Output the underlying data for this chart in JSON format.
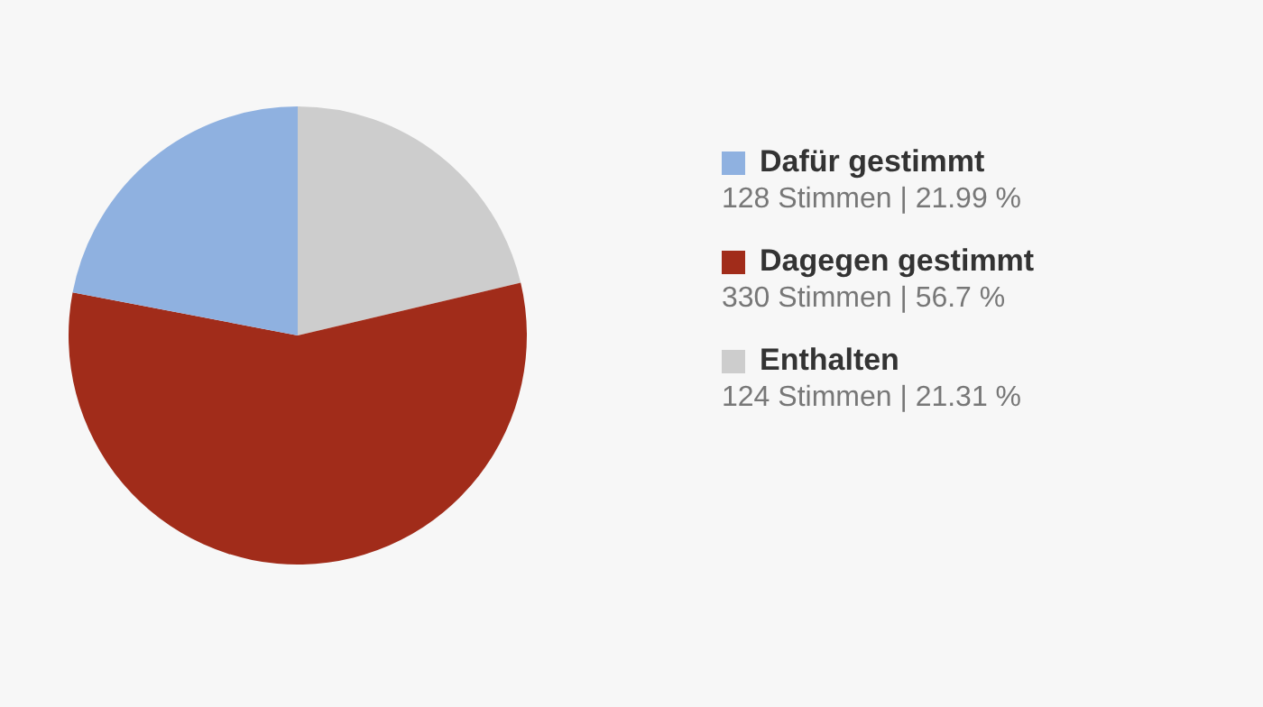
{
  "chart_data": {
    "type": "pie",
    "categories": [
      "Dafür gestimmt",
      "Dagegen gestimmt",
      "Enthalten"
    ],
    "values": [
      128,
      330,
      124
    ],
    "colors": [
      "#8fb1e0",
      "#a12c1a",
      "#cdcdcd"
    ],
    "value_labels": [
      "128 Stimmen | 21.99 %",
      "330 Stimmen | 56.7 %",
      "124 Stimmen | 21.31 %"
    ],
    "legend": "right"
  }
}
